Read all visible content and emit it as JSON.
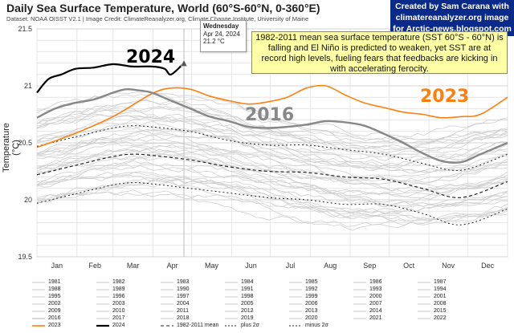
{
  "header": {
    "title": "Daily Sea Surface Temperature, World (60°S-60°N, 0-360°E)",
    "subtitle": "Dataset: NOAA OISST V2.1 | Image Credit: ClimateReanalyzer.org, Climate Change Institute, University of Maine"
  },
  "credit": {
    "line1": "Created by Sam Carana with",
    "line2": "climatereanalyzer.org image",
    "line3": "for Arctic-news.blogspot.com"
  },
  "note": {
    "text": "1982-2011 mean sea surface temperature (SST 60°S - 60°N) is falling and El Niño is predicted to weaken, yet SST are at record high levels, fueling fears that feedbacks are kicking in with accelerating ferocity."
  },
  "tooltip": {
    "line1": "Wednesday",
    "line2": "Apr 24, 2024",
    "line3": "21.2 °C"
  },
  "labels": {
    "y2024": "2024",
    "y2016": "2016",
    "y2023": "2023"
  },
  "colors": {
    "y2024": "#000000",
    "y2016": "#888888",
    "y2023": "#ff7f0e",
    "other": "#cfcfcf",
    "grid": "#e6e6e6",
    "credit_bg": "#0a2a8a",
    "note_bg": "#ffffa6"
  },
  "chart_data": {
    "type": "line",
    "title": "Daily Sea Surface Temperature, World (60°S-60°N, 0-360°E)",
    "xlabel": "",
    "ylabel": "Temperature (°C)",
    "x_unit": "day of year",
    "xlim": [
      1,
      366
    ],
    "ylim": [
      19.5,
      21.5
    ],
    "yticks": [
      "19.5",
      "20",
      "20.5",
      "21",
      "21.5"
    ],
    "month_labels": [
      "Jan",
      "Feb",
      "Mar",
      "Apr",
      "May",
      "Jun",
      "Jul",
      "Aug",
      "Sep",
      "Oct",
      "Nov",
      "Dec"
    ],
    "grid": true,
    "series": [
      {
        "name": "2024",
        "x": [
          1,
          10,
          20,
          31,
          45,
          60,
          75,
          90,
          100,
          105,
          115
        ],
        "values": [
          20.94,
          21.06,
          21.1,
          21.15,
          21.16,
          21.19,
          21.17,
          21.17,
          21.15,
          21.1,
          21.2
        ]
      },
      {
        "name": "2016",
        "x": [
          1,
          15,
          30,
          45,
          60,
          70,
          80,
          90,
          105,
          120,
          135,
          150,
          165,
          180,
          195,
          210,
          225,
          240,
          255,
          270,
          285,
          300,
          315,
          330,
          345,
          366
        ],
        "values": [
          20.72,
          20.8,
          20.85,
          20.88,
          20.94,
          20.97,
          20.96,
          20.94,
          20.87,
          20.8,
          20.73,
          20.69,
          20.64,
          20.63,
          20.64,
          20.66,
          20.69,
          20.68,
          20.65,
          20.58,
          20.5,
          20.41,
          20.34,
          20.33,
          20.4,
          20.5
        ]
      },
      {
        "name": "2023",
        "x": [
          1,
          30,
          60,
          90,
          105,
          120,
          135,
          150,
          165,
          180,
          195,
          210,
          225,
          240,
          255,
          270,
          285,
          300,
          315,
          330,
          345,
          366
        ],
        "values": [
          20.46,
          20.58,
          20.73,
          20.93,
          20.98,
          20.97,
          20.91,
          20.87,
          20.84,
          20.86,
          20.9,
          20.98,
          21.0,
          20.92,
          20.85,
          20.81,
          20.77,
          20.75,
          20.72,
          20.73,
          20.75,
          20.9
        ]
      },
      {
        "name": "1982-2011 mean",
        "x": [
          1,
          30,
          60,
          75,
          90,
          120,
          150,
          180,
          210,
          240,
          270,
          300,
          330,
          366
        ],
        "values": [
          20.22,
          20.3,
          20.38,
          20.4,
          20.39,
          20.35,
          20.29,
          20.25,
          20.24,
          20.2,
          20.18,
          20.1,
          20.02,
          20.16
        ]
      },
      {
        "name": "plus 2σ",
        "x": [
          1,
          30,
          60,
          75,
          90,
          120,
          150,
          180,
          210,
          240,
          270,
          300,
          330,
          366
        ],
        "values": [
          20.47,
          20.55,
          20.63,
          20.65,
          20.64,
          20.6,
          20.52,
          20.48,
          20.48,
          20.44,
          20.4,
          20.32,
          20.26,
          20.4
        ]
      },
      {
        "name": "minus 2σ",
        "x": [
          1,
          30,
          60,
          75,
          90,
          120,
          150,
          180,
          210,
          240,
          270,
          300,
          330,
          366
        ],
        "values": [
          19.97,
          20.05,
          20.13,
          20.15,
          20.14,
          20.1,
          20.06,
          20.02,
          20.0,
          19.96,
          19.96,
          19.88,
          19.78,
          19.92
        ]
      }
    ],
    "legend": [
      "1981",
      "1982",
      "1983",
      "1984",
      "1985",
      "1986",
      "1987",
      "1988",
      "1989",
      "1990",
      "1991",
      "1992",
      "1993",
      "1994",
      "1995",
      "1996",
      "1997",
      "1998",
      "1999",
      "2000",
      "2001",
      "2002",
      "2003",
      "2004",
      "2005",
      "2006",
      "2007",
      "2008",
      "2009",
      "2010",
      "2011",
      "2012",
      "2013",
      "2014",
      "2015",
      "2016",
      "2017",
      "2018",
      "2019",
      "2020",
      "2021",
      "2022",
      "2023",
      "2024",
      "1982-2011 mean",
      "plus 2σ",
      "minus 2σ"
    ],
    "legend_placement": "bottom"
  }
}
